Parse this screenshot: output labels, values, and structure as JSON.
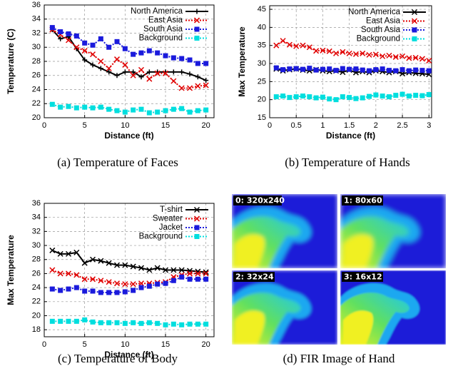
{
  "chart_data": [
    {
      "type": "line",
      "xlabel": "Distance (ft)",
      "ylabel": "Temperature (C)",
      "grid": true,
      "legend": "upper right",
      "x": [
        1,
        2,
        3,
        4,
        5,
        6,
        7,
        8,
        9,
        10,
        11,
        12,
        13,
        14,
        15,
        16,
        17,
        18,
        19,
        20
      ],
      "xlim": [
        0,
        21
      ],
      "xticks": [
        0,
        5,
        10,
        15,
        20
      ],
      "ylim": [
        20,
        36
      ],
      "yticks": [
        20,
        22,
        24,
        26,
        28,
        30,
        32,
        34,
        36
      ],
      "series": [
        {
          "name": "North America",
          "color": "#000000",
          "marker": "plus",
          "line_style": "solid",
          "values": [
            32.5,
            31.2,
            31.5,
            29.8,
            28.2,
            27.5,
            27,
            26.5,
            26,
            26.5,
            26.5,
            25.8,
            26.5,
            26.5,
            26.5,
            26.5,
            26.5,
            26.2,
            25.8,
            25.3
          ]
        },
        {
          "name": "East Asia",
          "color": "#e00000",
          "marker": "cross",
          "line_style": "dotted",
          "values": [
            32.5,
            31.8,
            31,
            30,
            29.5,
            29,
            28,
            27,
            28.3,
            27.5,
            26,
            26.8,
            25.5,
            26.3,
            26.3,
            25.2,
            24.2,
            24.2,
            24.5,
            24.6
          ]
        },
        {
          "name": "South Asia",
          "color": "#1a1adc",
          "marker": "square",
          "line_style": "dotted",
          "values": [
            32.8,
            32.2,
            31.9,
            31.6,
            30.6,
            30.3,
            31.2,
            30,
            30.8,
            29.8,
            29,
            29.2,
            29.5,
            29.2,
            28.8,
            28.5,
            28.4,
            28.2,
            27.7,
            27.7
          ]
        },
        {
          "name": "Background",
          "color": "#00dede",
          "marker": "square",
          "line_style": "dotted",
          "values": [
            21.9,
            21.5,
            21.6,
            21.4,
            21.5,
            21.4,
            21.5,
            21.2,
            21,
            20.8,
            21.1,
            21.2,
            20.7,
            20.8,
            21,
            21.2,
            21.3,
            20.8,
            21,
            21.1
          ]
        }
      ]
    },
    {
      "type": "line",
      "xlabel": "Distance (ft)",
      "ylabel": "Max Temperature",
      "grid": true,
      "legend": "upper right",
      "x": [
        0.125,
        0.25,
        0.375,
        0.5,
        0.625,
        0.75,
        0.875,
        1,
        1.125,
        1.25,
        1.375,
        1.5,
        1.625,
        1.75,
        1.875,
        2,
        2.125,
        2.25,
        2.375,
        2.5,
        2.625,
        2.75,
        2.875,
        3
      ],
      "xlim": [
        0,
        3.05
      ],
      "xticks": [
        0,
        0.5,
        1,
        1.5,
        2,
        2.5,
        3
      ],
      "ylim": [
        15,
        46
      ],
      "yticks": [
        15,
        20,
        25,
        30,
        35,
        40,
        45
      ],
      "series": [
        {
          "name": "North America",
          "color": "#000000",
          "marker": "cross",
          "line_style": "solid",
          "values": [
            28.5,
            28,
            28.3,
            28.5,
            28.2,
            28,
            28.3,
            28,
            27.8,
            28,
            27.6,
            28.2,
            27.5,
            27.8,
            27.5,
            28,
            27.8,
            27.5,
            27.8,
            27.2,
            27.5,
            27.3,
            27.2,
            27
          ]
        },
        {
          "name": "East Asia",
          "color": "#e00000",
          "marker": "cross",
          "line_style": "dotted",
          "values": [
            35,
            36.3,
            35.2,
            34.8,
            35,
            34.5,
            33.5,
            33.6,
            33.4,
            32.8,
            33.2,
            32.8,
            32.6,
            32.8,
            32.4,
            32.5,
            32,
            32.2,
            31.8,
            32,
            31.5,
            31.6,
            31.3,
            30.8
          ]
        },
        {
          "name": "South Asia",
          "color": "#1a1adc",
          "marker": "square",
          "line_style": "dotted",
          "values": [
            28.8,
            28.3,
            28.5,
            28.6,
            28.4,
            28.7,
            28.2,
            28.4,
            28.5,
            28.1,
            28.6,
            28.4,
            28.5,
            28.2,
            28,
            28.3,
            28.5,
            28.1,
            28,
            28.3,
            28,
            28.2,
            28.1,
            28
          ]
        },
        {
          "name": "Background",
          "color": "#00dede",
          "marker": "square",
          "line_style": "dotted",
          "values": [
            20.8,
            21,
            20.6,
            20.8,
            21,
            20.8,
            20.5,
            20.7,
            20.2,
            20,
            20.8,
            20.6,
            20.3,
            20.5,
            20.9,
            21.3,
            21,
            20.8,
            21.2,
            21.5,
            21,
            21.2,
            21.1,
            21.4
          ]
        }
      ]
    },
    {
      "type": "line",
      "xlabel": "Distance (ft)",
      "ylabel": "Max Temperature",
      "grid": true,
      "legend": "upper right",
      "x": [
        1,
        2,
        3,
        4,
        5,
        6,
        7,
        8,
        9,
        10,
        11,
        12,
        13,
        14,
        15,
        16,
        17,
        18,
        19,
        20
      ],
      "xlim": [
        0,
        21
      ],
      "xticks": [
        0,
        5,
        10,
        15,
        20
      ],
      "ylim": [
        17,
        36
      ],
      "yticks": [
        18,
        20,
        22,
        24,
        26,
        28,
        30,
        32,
        34,
        36
      ],
      "series": [
        {
          "name": "T-shirt",
          "color": "#000000",
          "marker": "cross",
          "line_style": "solid",
          "values": [
            29.3,
            28.8,
            28.8,
            29,
            27.5,
            28,
            27.8,
            27.5,
            27.2,
            27.2,
            27,
            26.8,
            26.5,
            26.8,
            26.5,
            26.5,
            26.5,
            26.4,
            26.3,
            26.2
          ]
        },
        {
          "name": "Sweater",
          "color": "#e00000",
          "marker": "cross",
          "line_style": "dotted",
          "values": [
            26.5,
            26,
            26,
            25.8,
            25.2,
            25.2,
            25,
            24.8,
            24.6,
            24.5,
            24.5,
            24.6,
            24.6,
            24.7,
            24.8,
            25.5,
            25.8,
            26,
            26,
            26
          ]
        },
        {
          "name": "Jacket",
          "color": "#1a1adc",
          "marker": "square",
          "line_style": "dotted",
          "values": [
            23.8,
            23.6,
            23.8,
            24,
            23.5,
            23.5,
            23.3,
            23.3,
            23.3,
            23.4,
            23.6,
            24,
            24.2,
            24.5,
            24.6,
            25,
            25.5,
            25.2,
            25.2,
            25.2
          ]
        },
        {
          "name": "Background",
          "color": "#00dede",
          "marker": "square",
          "line_style": "dotted",
          "values": [
            19.2,
            19.2,
            19.2,
            19.2,
            19.4,
            19.1,
            19,
            19,
            19,
            18.9,
            19,
            18.9,
            19,
            18.9,
            18.7,
            18.8,
            18.7,
            18.8,
            18.8,
            18.8
          ]
        }
      ]
    }
  ],
  "captions": [
    "(a) Temperature of Faces",
    "(b) Temperature of Hands",
    "(c) Temperature of Body",
    "(d) FIR Image of Hand"
  ],
  "thermal_image": {
    "tiles": [
      "0: 320x240",
      "1: 80x60",
      "2: 32x24",
      "3: 16x12"
    ]
  }
}
